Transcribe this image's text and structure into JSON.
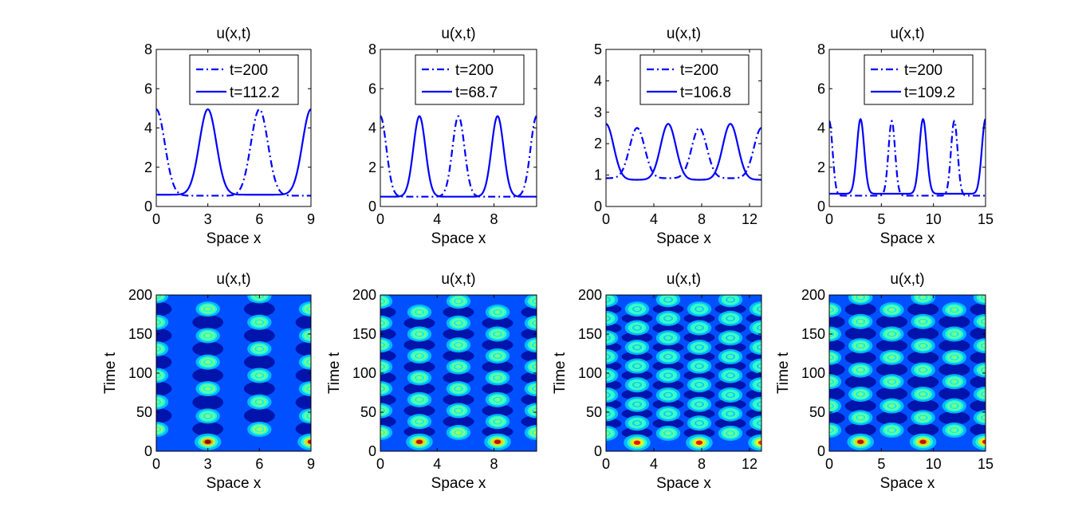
{
  "chart_data": [
    {
      "type": "line",
      "title": "u(x,t)",
      "xlabel": "Space x",
      "ylabel": "",
      "xlim": [
        0,
        9
      ],
      "ylim": [
        0,
        8
      ],
      "xticks": [
        0,
        3,
        6,
        9
      ],
      "yticks": [
        0,
        2,
        4,
        6,
        8
      ],
      "legend_position": "top-right",
      "series": [
        {
          "name": "t=200",
          "style": "dash-dot",
          "base": 0.55,
          "amp": 4.4,
          "width": 0.7,
          "peaks": [
            0,
            6,
            12
          ]
        },
        {
          "name": "t=112.2",
          "style": "solid",
          "base": 0.6,
          "amp": 4.35,
          "width": 0.7,
          "peaks": [
            -3,
            3,
            9
          ]
        }
      ]
    },
    {
      "type": "line",
      "title": "u(x,t)",
      "xlabel": "Space x",
      "ylabel": "",
      "xlim": [
        0,
        11
      ],
      "ylim": [
        0,
        8
      ],
      "xticks": [
        0,
        4,
        8
      ],
      "yticks": [
        0,
        2,
        4,
        6,
        8
      ],
      "legend_position": "top-right",
      "series": [
        {
          "name": "t=200",
          "style": "dash-dot",
          "base": 0.5,
          "amp": 4.1,
          "width": 0.6,
          "peaks": [
            0,
            5.5,
            11
          ]
        },
        {
          "name": "t=68.7",
          "style": "solid",
          "base": 0.5,
          "amp": 4.1,
          "width": 0.6,
          "peaks": [
            2.75,
            8.25
          ]
        }
      ]
    },
    {
      "type": "line",
      "title": "u(x,t)",
      "xlabel": "Space x",
      "ylabel": "",
      "xlim": [
        0,
        13
      ],
      "ylim": [
        0,
        5
      ],
      "xticks": [
        0,
        4,
        8,
        12
      ],
      "yticks": [
        0,
        1,
        2,
        3,
        4,
        5
      ],
      "legend_position": "top-right",
      "series": [
        {
          "name": "t=200",
          "style": "dash-dot",
          "base": 0.9,
          "amp": 1.6,
          "width": 0.9,
          "peaks": [
            -2.6,
            2.6,
            7.8,
            13
          ]
        },
        {
          "name": "t=106.8",
          "style": "solid",
          "base": 0.85,
          "amp": 1.78,
          "width": 0.9,
          "peaks": [
            0,
            5.2,
            10.4,
            15.6
          ]
        }
      ]
    },
    {
      "type": "line",
      "title": "u(x,t)",
      "xlabel": "Space x",
      "ylabel": "",
      "xlim": [
        0,
        15
      ],
      "ylim": [
        0,
        8
      ],
      "xticks": [
        0,
        5,
        10,
        15
      ],
      "yticks": [
        0,
        2,
        4,
        6,
        8
      ],
      "legend_position": "top-right",
      "series": [
        {
          "name": "t=200",
          "style": "dash-dot",
          "base": 0.55,
          "amp": 3.8,
          "width": 0.45,
          "peaks": [
            0,
            6,
            12,
            18
          ]
        },
        {
          "name": "t=109.2",
          "style": "solid",
          "base": 0.65,
          "amp": 3.8,
          "width": 0.5,
          "peaks": [
            3,
            9,
            15
          ]
        }
      ]
    },
    {
      "type": "heatmap",
      "title": "u(x,t)",
      "xlabel": "Space x",
      "ylabel": "Time t",
      "xlim": [
        0,
        9
      ],
      "ylim": [
        0,
        200
      ],
      "xticks": [
        0,
        3,
        6,
        9
      ],
      "yticks": [
        0,
        50,
        100,
        150,
        200
      ],
      "colormap": "jet",
      "spots": [
        {
          "x": 3,
          "t": 12,
          "value": 1.0
        },
        {
          "x": 9,
          "t": 12,
          "value": 0.95
        },
        {
          "x": 0,
          "t": 28,
          "value": 0.55
        },
        {
          "x": 6,
          "t": 28,
          "value": 0.55
        },
        {
          "x": 3,
          "t": 45,
          "value": 0.5
        },
        {
          "x": 9,
          "t": 45,
          "value": 0.5
        },
        {
          "x": 0,
          "t": 63,
          "value": 0.5
        },
        {
          "x": 6,
          "t": 63,
          "value": 0.5
        },
        {
          "x": 3,
          "t": 80,
          "value": 0.52
        },
        {
          "x": 9,
          "t": 80,
          "value": 0.52
        },
        {
          "x": 0,
          "t": 97,
          "value": 0.5
        },
        {
          "x": 6,
          "t": 97,
          "value": 0.5
        },
        {
          "x": 3,
          "t": 114,
          "value": 0.52
        },
        {
          "x": 9,
          "t": 114,
          "value": 0.52
        },
        {
          "x": 0,
          "t": 131,
          "value": 0.5
        },
        {
          "x": 6,
          "t": 131,
          "value": 0.5
        },
        {
          "x": 3,
          "t": 148,
          "value": 0.52
        },
        {
          "x": 9,
          "t": 148,
          "value": 0.52
        },
        {
          "x": 0,
          "t": 165,
          "value": 0.5
        },
        {
          "x": 6,
          "t": 165,
          "value": 0.5
        },
        {
          "x": 3,
          "t": 182,
          "value": 0.52
        },
        {
          "x": 9,
          "t": 182,
          "value": 0.52
        },
        {
          "x": 0,
          "t": 199,
          "value": 0.5
        },
        {
          "x": 6,
          "t": 199,
          "value": 0.5
        }
      ]
    },
    {
      "type": "heatmap",
      "title": "u(x,t)",
      "xlabel": "Space x",
      "ylabel": "Time t",
      "xlim": [
        0,
        11
      ],
      "ylim": [
        0,
        200
      ],
      "xticks": [
        0,
        4,
        8
      ],
      "yticks": [
        0,
        50,
        100,
        150,
        200
      ],
      "colormap": "jet",
      "spots": [
        {
          "x": 2.75,
          "t": 12,
          "value": 0.95
        },
        {
          "x": 8.25,
          "t": 12,
          "value": 0.95
        },
        {
          "x": 0,
          "t": 24,
          "value": 0.55
        },
        {
          "x": 5.5,
          "t": 24,
          "value": 0.55
        },
        {
          "x": 11,
          "t": 24,
          "value": 0.55
        },
        {
          "x": 2.75,
          "t": 38,
          "value": 0.5
        },
        {
          "x": 8.25,
          "t": 38,
          "value": 0.5
        },
        {
          "x": 0,
          "t": 52,
          "value": 0.5
        },
        {
          "x": 5.5,
          "t": 52,
          "value": 0.5
        },
        {
          "x": 11,
          "t": 52,
          "value": 0.5
        },
        {
          "x": 2.75,
          "t": 66,
          "value": 0.5
        },
        {
          "x": 8.25,
          "t": 66,
          "value": 0.5
        },
        {
          "x": 0,
          "t": 80,
          "value": 0.5
        },
        {
          "x": 5.5,
          "t": 80,
          "value": 0.5
        },
        {
          "x": 11,
          "t": 80,
          "value": 0.5
        },
        {
          "x": 2.75,
          "t": 94,
          "value": 0.5
        },
        {
          "x": 8.25,
          "t": 94,
          "value": 0.5
        },
        {
          "x": 0,
          "t": 108,
          "value": 0.5
        },
        {
          "x": 5.5,
          "t": 108,
          "value": 0.5
        },
        {
          "x": 11,
          "t": 108,
          "value": 0.5
        },
        {
          "x": 2.75,
          "t": 122,
          "value": 0.5
        },
        {
          "x": 8.25,
          "t": 122,
          "value": 0.5
        },
        {
          "x": 0,
          "t": 136,
          "value": 0.5
        },
        {
          "x": 5.5,
          "t": 136,
          "value": 0.5
        },
        {
          "x": 11,
          "t": 136,
          "value": 0.5
        },
        {
          "x": 2.75,
          "t": 150,
          "value": 0.5
        },
        {
          "x": 8.25,
          "t": 150,
          "value": 0.5
        },
        {
          "x": 0,
          "t": 164,
          "value": 0.5
        },
        {
          "x": 5.5,
          "t": 164,
          "value": 0.5
        },
        {
          "x": 11,
          "t": 164,
          "value": 0.5
        },
        {
          "x": 2.75,
          "t": 178,
          "value": 0.5
        },
        {
          "x": 8.25,
          "t": 178,
          "value": 0.5
        },
        {
          "x": 0,
          "t": 192,
          "value": 0.5
        },
        {
          "x": 5.5,
          "t": 192,
          "value": 0.5
        },
        {
          "x": 11,
          "t": 192,
          "value": 0.5
        }
      ]
    },
    {
      "type": "heatmap",
      "title": "u(x,t)",
      "xlabel": "Space x",
      "ylabel": "Time t",
      "xlim": [
        0,
        13
      ],
      "ylim": [
        0,
        200
      ],
      "xticks": [
        0,
        4,
        8,
        12
      ],
      "yticks": [
        0,
        50,
        100,
        150,
        200
      ],
      "colormap": "jet",
      "spots": [
        {
          "x": 2.6,
          "t": 11,
          "value": 0.9
        },
        {
          "x": 7.8,
          "t": 11,
          "value": 0.9
        },
        {
          "x": 13,
          "t": 11,
          "value": 0.85
        },
        {
          "x": 0,
          "t": 23,
          "value": 0.5
        },
        {
          "x": 5.2,
          "t": 23,
          "value": 0.5
        },
        {
          "x": 10.4,
          "t": 23,
          "value": 0.5
        },
        {
          "x": 2.6,
          "t": 36,
          "value": 0.45
        },
        {
          "x": 7.8,
          "t": 36,
          "value": 0.45
        },
        {
          "x": 13,
          "t": 36,
          "value": 0.45
        },
        {
          "x": 0,
          "t": 48,
          "value": 0.45
        },
        {
          "x": 5.2,
          "t": 48,
          "value": 0.45
        },
        {
          "x": 10.4,
          "t": 48,
          "value": 0.45
        },
        {
          "x": 2.6,
          "t": 60,
          "value": 0.45
        },
        {
          "x": 7.8,
          "t": 60,
          "value": 0.45
        },
        {
          "x": 13,
          "t": 60,
          "value": 0.45
        },
        {
          "x": 0,
          "t": 72,
          "value": 0.45
        },
        {
          "x": 5.2,
          "t": 72,
          "value": 0.45
        },
        {
          "x": 10.4,
          "t": 72,
          "value": 0.45
        },
        {
          "x": 2.6,
          "t": 85,
          "value": 0.45
        },
        {
          "x": 7.8,
          "t": 85,
          "value": 0.45
        },
        {
          "x": 13,
          "t": 85,
          "value": 0.45
        },
        {
          "x": 0,
          "t": 97,
          "value": 0.45
        },
        {
          "x": 5.2,
          "t": 97,
          "value": 0.45
        },
        {
          "x": 10.4,
          "t": 97,
          "value": 0.45
        },
        {
          "x": 2.6,
          "t": 109,
          "value": 0.45
        },
        {
          "x": 7.8,
          "t": 109,
          "value": 0.45
        },
        {
          "x": 13,
          "t": 109,
          "value": 0.45
        },
        {
          "x": 0,
          "t": 121,
          "value": 0.45
        },
        {
          "x": 5.2,
          "t": 121,
          "value": 0.45
        },
        {
          "x": 10.4,
          "t": 121,
          "value": 0.45
        },
        {
          "x": 2.6,
          "t": 133,
          "value": 0.45
        },
        {
          "x": 7.8,
          "t": 133,
          "value": 0.45
        },
        {
          "x": 13,
          "t": 133,
          "value": 0.45
        },
        {
          "x": 0,
          "t": 145,
          "value": 0.45
        },
        {
          "x": 5.2,
          "t": 145,
          "value": 0.45
        },
        {
          "x": 10.4,
          "t": 145,
          "value": 0.45
        },
        {
          "x": 2.6,
          "t": 158,
          "value": 0.45
        },
        {
          "x": 7.8,
          "t": 158,
          "value": 0.45
        },
        {
          "x": 13,
          "t": 158,
          "value": 0.45
        },
        {
          "x": 0,
          "t": 170,
          "value": 0.45
        },
        {
          "x": 5.2,
          "t": 170,
          "value": 0.45
        },
        {
          "x": 10.4,
          "t": 170,
          "value": 0.45
        },
        {
          "x": 2.6,
          "t": 182,
          "value": 0.45
        },
        {
          "x": 7.8,
          "t": 182,
          "value": 0.45
        },
        {
          "x": 13,
          "t": 182,
          "value": 0.45
        },
        {
          "x": 0,
          "t": 194,
          "value": 0.45
        },
        {
          "x": 5.2,
          "t": 194,
          "value": 0.45
        },
        {
          "x": 10.4,
          "t": 194,
          "value": 0.45
        }
      ]
    },
    {
      "type": "heatmap",
      "title": "u(x,t)",
      "xlabel": "Space x",
      "ylabel": "Time t",
      "xlim": [
        0,
        15
      ],
      "ylim": [
        0,
        200
      ],
      "xticks": [
        0,
        5,
        10,
        15
      ],
      "yticks": [
        0,
        50,
        100,
        150,
        200
      ],
      "colormap": "jet",
      "spots": [
        {
          "x": 3,
          "t": 12,
          "value": 0.95
        },
        {
          "x": 9,
          "t": 12,
          "value": 0.95
        },
        {
          "x": 15,
          "t": 12,
          "value": 0.9
        },
        {
          "x": 0,
          "t": 27,
          "value": 0.5
        },
        {
          "x": 6,
          "t": 27,
          "value": 0.5
        },
        {
          "x": 12,
          "t": 27,
          "value": 0.5
        },
        {
          "x": 3,
          "t": 43,
          "value": 0.5
        },
        {
          "x": 9,
          "t": 43,
          "value": 0.5
        },
        {
          "x": 15,
          "t": 43,
          "value": 0.5
        },
        {
          "x": 0,
          "t": 58,
          "value": 0.5
        },
        {
          "x": 6,
          "t": 58,
          "value": 0.5
        },
        {
          "x": 12,
          "t": 58,
          "value": 0.5
        },
        {
          "x": 3,
          "t": 73,
          "value": 0.5
        },
        {
          "x": 9,
          "t": 73,
          "value": 0.5
        },
        {
          "x": 15,
          "t": 73,
          "value": 0.5
        },
        {
          "x": 0,
          "t": 89,
          "value": 0.5
        },
        {
          "x": 6,
          "t": 89,
          "value": 0.5
        },
        {
          "x": 12,
          "t": 89,
          "value": 0.5
        },
        {
          "x": 3,
          "t": 104,
          "value": 0.5
        },
        {
          "x": 9,
          "t": 104,
          "value": 0.5
        },
        {
          "x": 15,
          "t": 104,
          "value": 0.5
        },
        {
          "x": 0,
          "t": 120,
          "value": 0.5
        },
        {
          "x": 6,
          "t": 120,
          "value": 0.5
        },
        {
          "x": 12,
          "t": 120,
          "value": 0.5
        },
        {
          "x": 3,
          "t": 135,
          "value": 0.5
        },
        {
          "x": 9,
          "t": 135,
          "value": 0.5
        },
        {
          "x": 15,
          "t": 135,
          "value": 0.5
        },
        {
          "x": 0,
          "t": 150,
          "value": 0.5
        },
        {
          "x": 6,
          "t": 150,
          "value": 0.5
        },
        {
          "x": 12,
          "t": 150,
          "value": 0.5
        },
        {
          "x": 3,
          "t": 166,
          "value": 0.5
        },
        {
          "x": 9,
          "t": 166,
          "value": 0.5
        },
        {
          "x": 15,
          "t": 166,
          "value": 0.5
        },
        {
          "x": 0,
          "t": 181,
          "value": 0.5
        },
        {
          "x": 6,
          "t": 181,
          "value": 0.5
        },
        {
          "x": 12,
          "t": 181,
          "value": 0.5
        },
        {
          "x": 3,
          "t": 197,
          "value": 0.5
        },
        {
          "x": 9,
          "t": 197,
          "value": 0.5
        },
        {
          "x": 15,
          "t": 197,
          "value": 0.5
        }
      ]
    }
  ],
  "colors": {
    "line": "#0000ff",
    "axes": "#000000",
    "background": "#ffffff"
  }
}
